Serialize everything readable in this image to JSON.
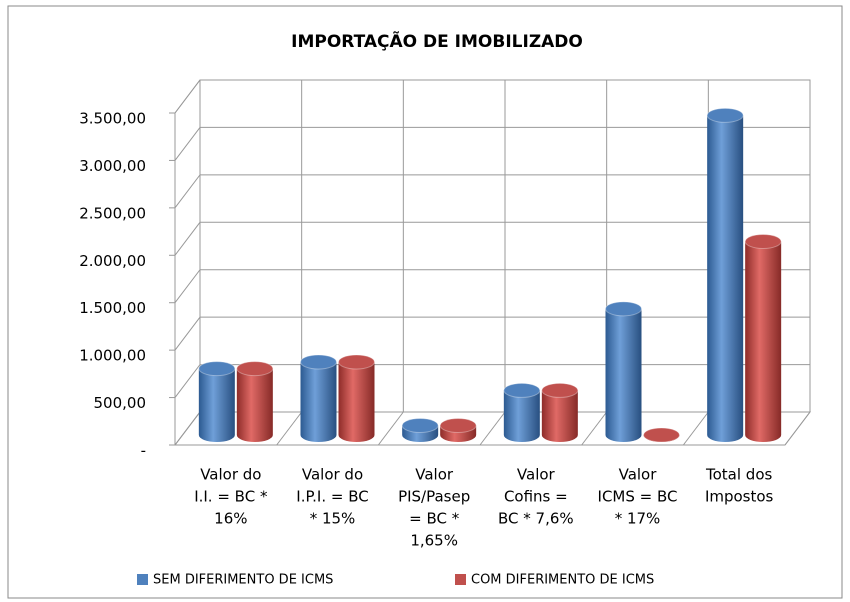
{
  "chart_data": {
    "type": "bar3d",
    "title": "IMPORTAÇÃO DE  IMOBILIZADO",
    "categories": [
      [
        "Valor do",
        "I.I. = BC *",
        "16%"
      ],
      [
        "Valor do",
        "I.P.I. = BC",
        "* 15%"
      ],
      [
        "Valor",
        "PIS/Pasep",
        "= BC *",
        "1,65%"
      ],
      [
        "Valor",
        "Cofins =",
        "BC * 7,6%"
      ],
      [
        "Valor",
        "ICMS = BC",
        "* 17%"
      ],
      [
        "Total dos",
        "Impostos"
      ]
    ],
    "series": [
      {
        "name": "SEM DIFERIMENTO  DE ICMS",
        "color": "#4f81bd",
        "values": [
          700,
          770,
          100,
          470,
          1330,
          3370
        ]
      },
      {
        "name": "COM DIFERIMENTO  DE ICMS",
        "color": "#c0504d",
        "values": [
          700,
          770,
          100,
          470,
          0,
          2040
        ]
      }
    ],
    "ylim": [
      0,
      3500
    ],
    "yticks": [
      {
        "value": 0,
        "label": "-"
      },
      {
        "value": 500,
        "label": "500,00"
      },
      {
        "value": 1000,
        "label": "1.000,00"
      },
      {
        "value": 1500,
        "label": "1.500,00"
      },
      {
        "value": 2000,
        "label": "2.000,00"
      },
      {
        "value": 2500,
        "label": "2.500,00"
      },
      {
        "value": 3000,
        "label": "3.000,00"
      },
      {
        "value": 3500,
        "label": "3.500,00"
      }
    ],
    "grid": true,
    "legend": "bottom"
  }
}
